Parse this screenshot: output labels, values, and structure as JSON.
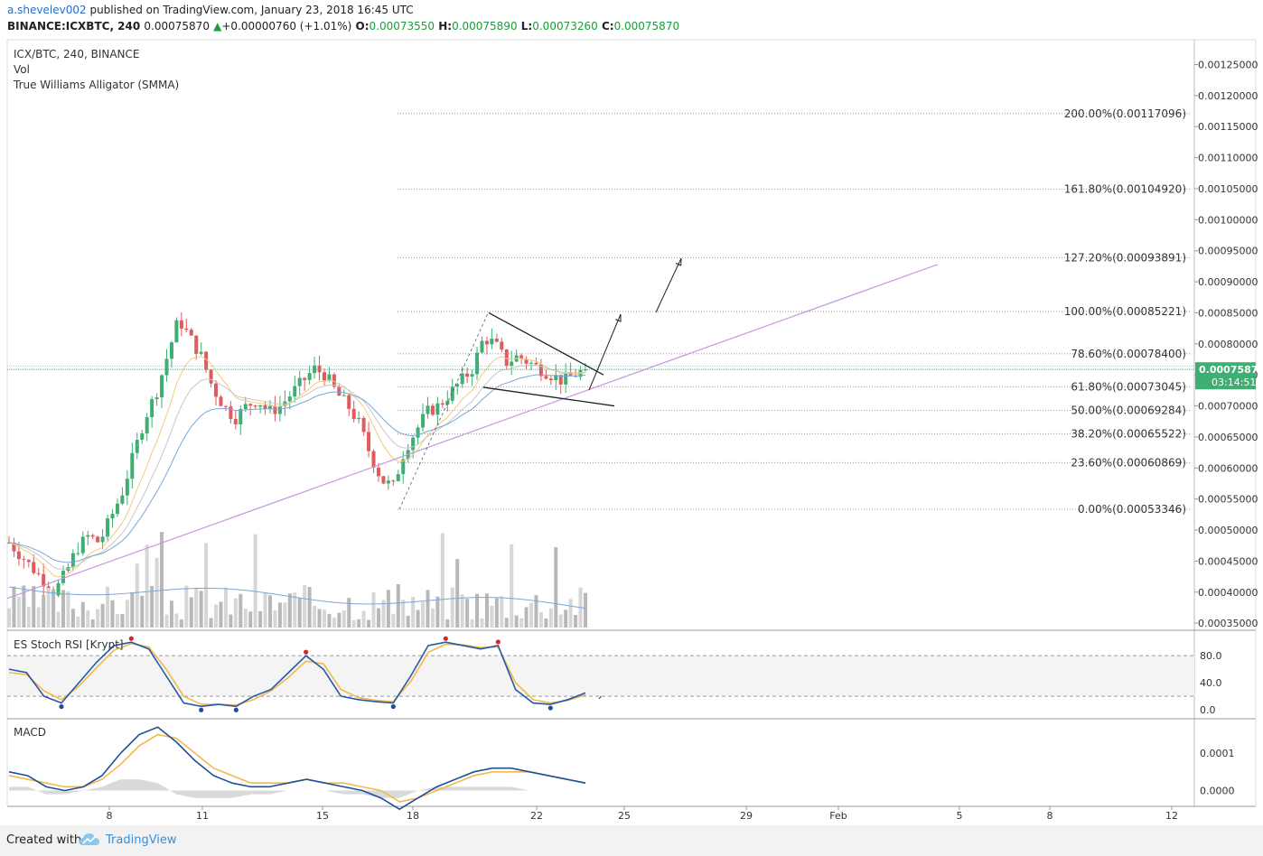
{
  "header": {
    "user": "a.shevelev002",
    "published": "published on TradingView.com, January 23, 2018 16:45 UTC",
    "symbol_label": "BINANCE:ICXBTC, 240",
    "price": "0.00075870",
    "arrow": "▲",
    "change": "+0.00000760 (+1.01%)",
    "o_label": "O:",
    "o_value": "0.00073550",
    "h_label": "H:",
    "h_value": "0.00075890",
    "l_label": "L:",
    "l_value": "0.00073260",
    "c_label": "C:",
    "c_value": "0.00075870"
  },
  "legend": {
    "main": "ICX/BTC, 240, BINANCE",
    "vol": "Vol",
    "alligator": "True Williams Alligator (SMMA)",
    "stoch": "ES Stoch RSI [Krypt]",
    "macd": "MACD"
  },
  "footer": {
    "created_with": "Created with",
    "brand": "TradingView"
  },
  "colors": {
    "up": "#3fae73",
    "down": "#e05b5b",
    "trend": "#c896e0",
    "stoch_k": "#2559a8",
    "stoch_d": "#f2b84b",
    "macd": "#1f4f96",
    "signal": "#f2b84b",
    "last_price_bg": "#3fae73"
  },
  "chart_data": [
    {
      "type": "candlestick",
      "title": "ICX/BTC, 240, BINANCE",
      "x_ticks": [
        "8",
        "11",
        "15",
        "18",
        "22",
        "25",
        "29",
        "Feb",
        "5",
        "8",
        "12"
      ],
      "y_ticks": [
        "0.00125000",
        "0.00120000",
        "0.00115000",
        "0.00110000",
        "0.00105000",
        "0.00100000",
        "0.00095000",
        "0.00090000",
        "0.00085000",
        "0.00080000",
        "0.00075000",
        "0.00070000",
        "0.00065000",
        "0.00060000",
        "0.00055000",
        "0.00050000",
        "0.00045000",
        "0.00040000",
        "0.00035000"
      ],
      "ylim": [
        0.00034,
        0.00129
      ],
      "last_price": "0.00075870",
      "countdown": "03:14:51",
      "fib_levels": [
        {
          "label": "200.00%(0.00117096)",
          "value": 0.00117096
        },
        {
          "label": "161.80%(0.00104920)",
          "value": 0.0010492
        },
        {
          "label": "127.20%(0.00093891)",
          "value": 0.00093891
        },
        {
          "label": "100.00%(0.00085221)",
          "value": 0.00085221
        },
        {
          "label": "78.60%(0.00078400)",
          "value": 0.000784
        },
        {
          "label": "61.80%(0.00073045)",
          "value": 0.00073045
        },
        {
          "label": "50.00%(0.00069284)",
          "value": 0.00069284
        },
        {
          "label": "38.20%(0.00065522)",
          "value": 0.00065522
        },
        {
          "label": "23.60%(0.00060869)",
          "value": 0.00060869
        },
        {
          "label": "0.00%(0.00053346)",
          "value": 0.00053346
        }
      ],
      "price_path": [
        0.00048,
        0.00046,
        0.00044,
        0.00042,
        0.0004,
        0.00043,
        0.00047,
        0.00049,
        0.00048,
        0.00052,
        0.00056,
        0.00062,
        0.00068,
        0.00072,
        0.00078,
        0.00084,
        0.00081,
        0.00078,
        0.00073,
        0.0007,
        0.00068,
        0.0007,
        0.00071,
        0.00069,
        0.0007,
        0.00072,
        0.00074,
        0.00076,
        0.00075,
        0.00072,
        0.0007,
        0.00067,
        0.00062,
        0.00058,
        0.00057,
        0.00063,
        0.00066,
        0.00069,
        0.0007,
        0.00072,
        0.00074,
        0.00076,
        0.00081,
        0.0008,
        0.00077,
        0.00078,
        0.00077,
        0.00076,
        0.00075,
        0.00074,
        0.00075,
        0.000759
      ]
    },
    {
      "type": "line",
      "title": "ES Stoch RSI [Krypt]",
      "y_ticks": [
        "80.0",
        "40.0",
        "0.0"
      ],
      "ylim": [
        -12,
        115
      ],
      "bands": [
        20,
        80
      ],
      "k": [
        60,
        55,
        20,
        10,
        40,
        70,
        95,
        100,
        90,
        50,
        10,
        5,
        8,
        5,
        20,
        30,
        55,
        80,
        60,
        20,
        15,
        12,
        10,
        50,
        95,
        100,
        95,
        90,
        95,
        30,
        10,
        8,
        15,
        25
      ],
      "d": [
        55,
        52,
        28,
        15,
        35,
        62,
        88,
        98,
        93,
        60,
        20,
        8,
        8,
        7,
        15,
        28,
        48,
        72,
        68,
        30,
        18,
        14,
        12,
        42,
        85,
        97,
        96,
        92,
        93,
        40,
        15,
        10,
        14,
        22
      ]
    },
    {
      "type": "line",
      "title": "MACD",
      "y_ticks": [
        "0.0001",
        "0.0000"
      ],
      "ylim": [
        -4e-05,
        0.00019
      ],
      "macd": [
        5e-05,
        4e-05,
        1e-05,
        0.0,
        1e-05,
        4e-05,
        0.0001,
        0.00015,
        0.00017,
        0.00013,
        8e-05,
        4e-05,
        2e-05,
        1e-05,
        1e-05,
        2e-05,
        3e-05,
        2e-05,
        1e-05,
        0.0,
        -2e-05,
        -5e-05,
        -2e-05,
        1e-05,
        3e-05,
        5e-05,
        6e-05,
        6e-05,
        5e-05,
        4e-05,
        3e-05,
        2e-05
      ],
      "signal": [
        4e-05,
        3e-05,
        2e-05,
        1e-05,
        1e-05,
        3e-05,
        7e-05,
        0.00012,
        0.00015,
        0.00014,
        0.0001,
        6e-05,
        4e-05,
        2e-05,
        2e-05,
        2e-05,
        3e-05,
        2e-05,
        2e-05,
        1e-05,
        0.0,
        -3e-05,
        -2e-05,
        0.0,
        2e-05,
        4e-05,
        5e-05,
        5e-05,
        5e-05,
        4e-05,
        3e-05,
        2e-05
      ]
    }
  ]
}
